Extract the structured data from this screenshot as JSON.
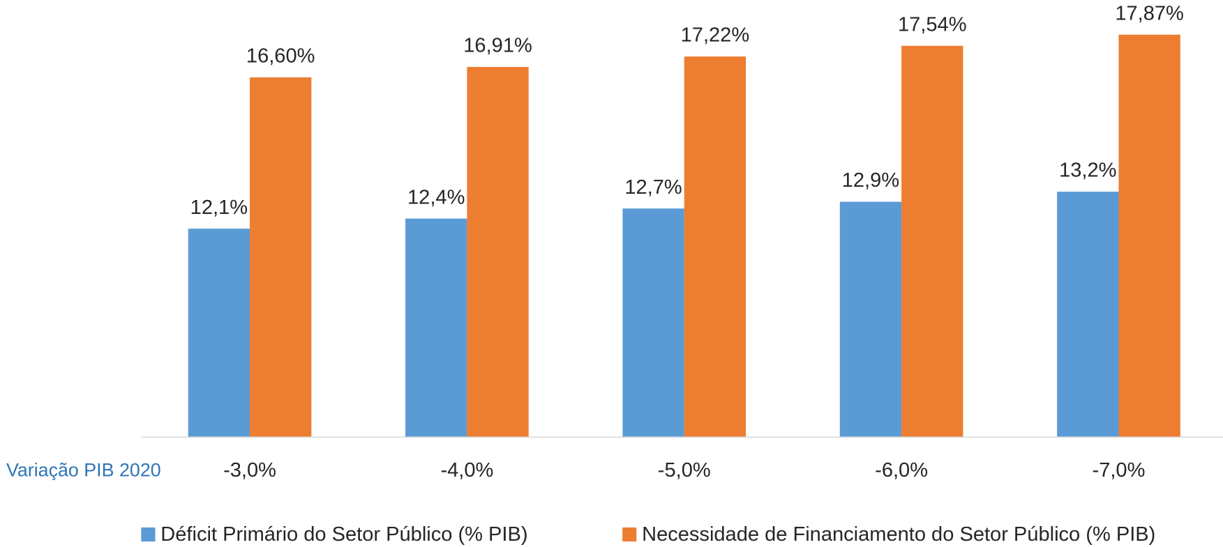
{
  "chart_data": {
    "type": "bar",
    "x_label": "Variação PIB 2020",
    "categories": [
      "-3,0%",
      "-4,0%",
      "-5,0%",
      "-6,0%",
      "-7,0%"
    ],
    "series": [
      {
        "name": "Déficit Primário do Setor Público (% PIB)",
        "color": "#5b9bd5",
        "values": [
          12.1,
          12.4,
          12.7,
          12.9,
          13.2
        ],
        "value_labels": [
          "12,1%",
          "12,4%",
          "12,7%",
          "12,9%",
          "13,2%"
        ]
      },
      {
        "name": "Necessidade de Financiamento do Setor Público (% PIB)",
        "color": "#ed7d31",
        "values": [
          16.6,
          16.91,
          17.22,
          17.54,
          17.87
        ],
        "value_labels": [
          "16,60%",
          "16,91%",
          "17,22%",
          "17,54%",
          "17,87%"
        ]
      }
    ],
    "ylim": [
      5.9,
      18.9
    ],
    "legend": "bottom"
  }
}
